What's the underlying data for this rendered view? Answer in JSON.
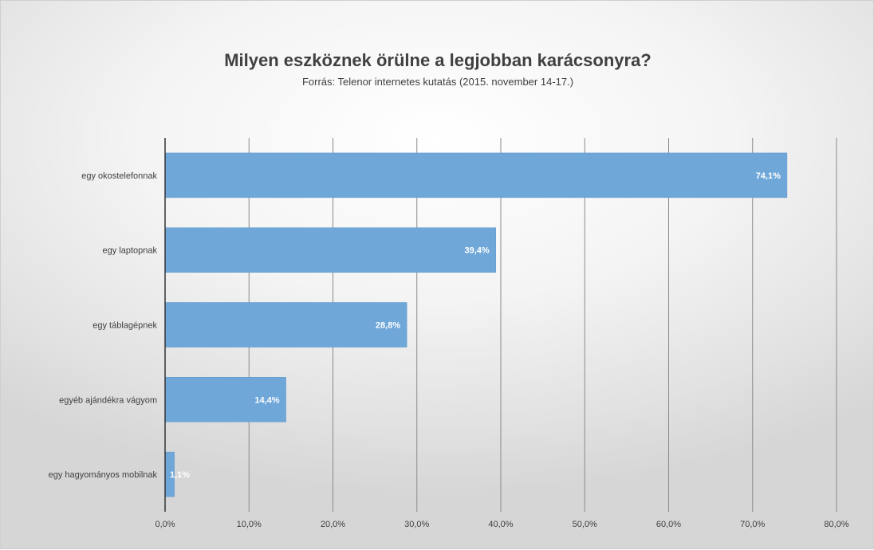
{
  "chart_data": {
    "type": "bar",
    "orientation": "horizontal",
    "title": "Milyen eszköznek örülne a legjobban karácsonyra?",
    "subtitle": "Forrás: Telenor internetes kutatás (2015. november 14-17.)",
    "categories": [
      "egy okostelefonnak",
      "egy laptopnak",
      "egy táblagépnek",
      "egyéb ajándékra vágyom",
      "egy hagyományos mobilnak"
    ],
    "values": [
      74.1,
      39.4,
      28.8,
      14.4,
      1.1
    ],
    "data_labels": [
      "74,1%",
      "39,4%",
      "28,8%",
      "14,4%",
      "1,1%"
    ],
    "xlim": [
      0,
      80
    ],
    "x_ticks": [
      "0,0%",
      "10,0%",
      "20,0%",
      "30,0%",
      "40,0%",
      "50,0%",
      "60,0%",
      "70,0%",
      "80,0%"
    ],
    "xlabel": "",
    "ylabel": "",
    "grid": true,
    "legend": "none",
    "colors": {
      "bar": "#6fa7d9",
      "bar_border": "#5b95c9",
      "gridline": "#8a8a8a",
      "axis": "#333333",
      "text": "#404040"
    }
  }
}
